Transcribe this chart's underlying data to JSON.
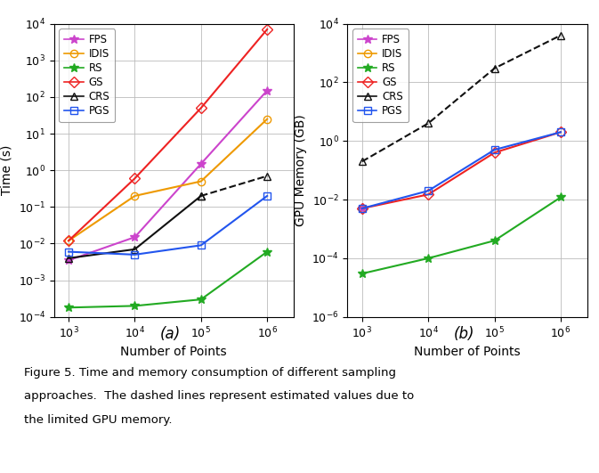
{
  "x": [
    1000.0,
    10000.0,
    100000.0,
    1000000.0
  ],
  "plot_a": {
    "FPS": [
      0.0035,
      0.015,
      1.5,
      150.0
    ],
    "IDIS": [
      0.012,
      0.2,
      0.5,
      25.0
    ],
    "RS": [
      0.00018,
      0.0002,
      0.0003,
      0.006
    ],
    "GS": [
      0.012,
      0.6,
      50.0,
      7000.0
    ],
    "CRS_solid": [
      0.004,
      0.007,
      0.2
    ],
    "CRS_dashed": [
      0.2,
      0.7
    ],
    "PGS": [
      0.006,
      0.005,
      0.009,
      0.2
    ]
  },
  "plot_b": {
    "FPS": [
      0.005
    ],
    "IDIS": [
      0.005
    ],
    "RS": [
      3e-05,
      0.0001,
      0.0004,
      0.012
    ],
    "GS": [
      0.005,
      0.015,
      0.4,
      2.0
    ],
    "CRS_dashed": [
      0.2,
      4.0,
      300.0,
      4000.0
    ],
    "PGS": [
      0.005,
      0.02,
      0.5,
      2.0
    ]
  },
  "colors": {
    "FPS": "#cc44cc",
    "IDIS": "#ee9900",
    "RS": "#22aa22",
    "GS": "#ee2222",
    "CRS": "#111111",
    "PGS": "#2255ee"
  },
  "xlabel": "Number of Points",
  "ylabel_a": "Time (s)",
  "ylabel_b": "GPU Memory (GB)",
  "label_a": "(a)",
  "label_b": "(b)",
  "caption_line1": "Figure 5. Time and memory consumption of different sampling",
  "caption_line2": "approaches.  The dashed lines represent estimated values due to",
  "caption_line3": "the limited GPU memory."
}
